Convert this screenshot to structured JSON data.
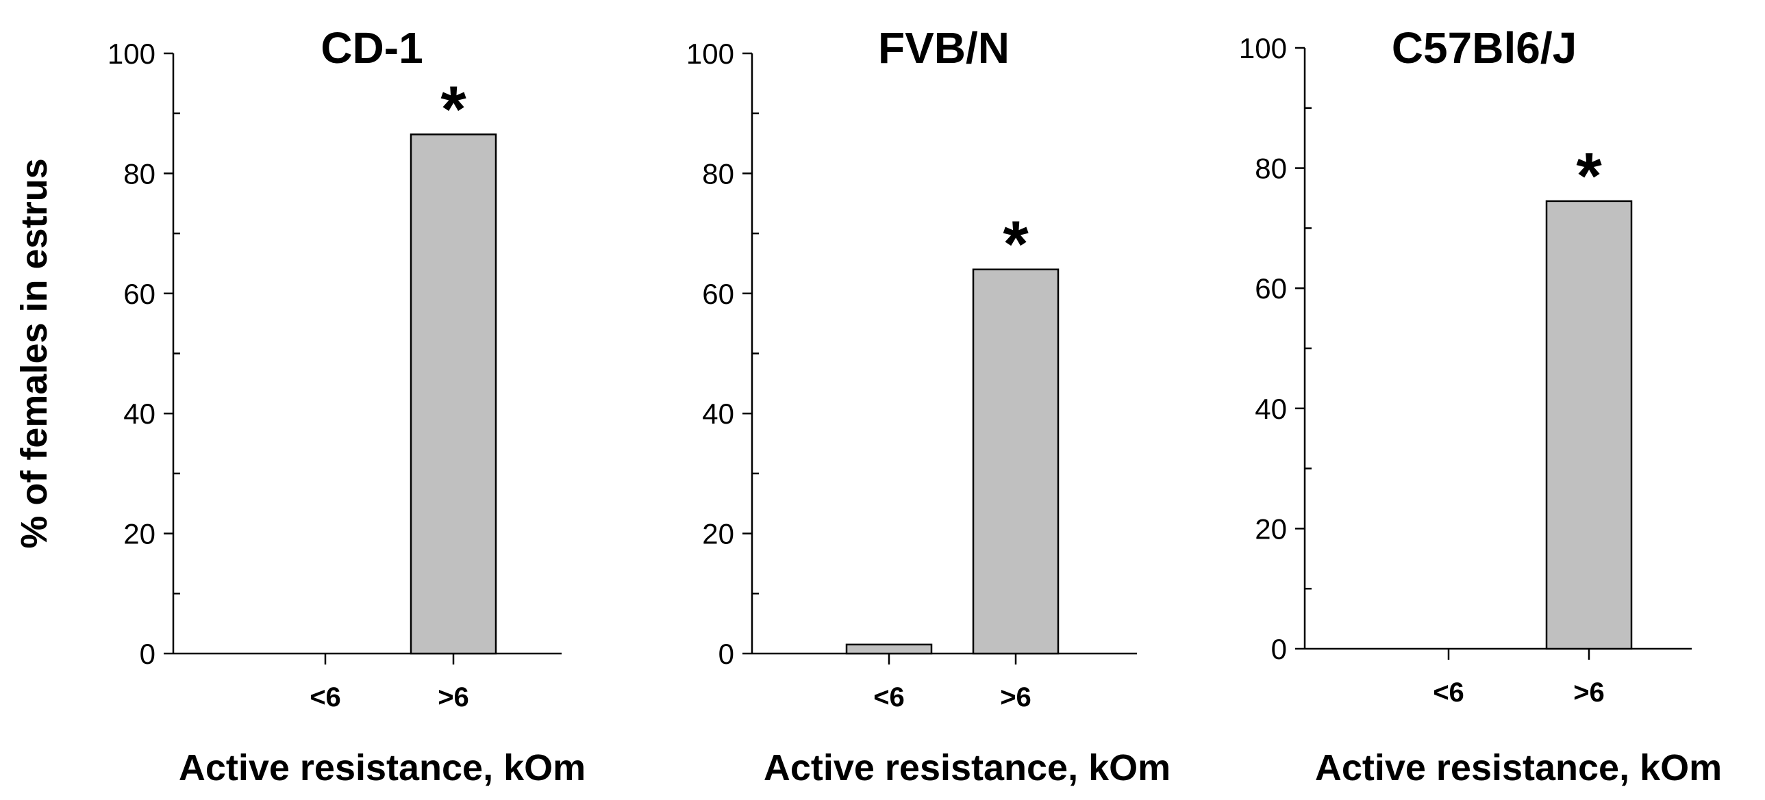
{
  "chart_data": [
    {
      "type": "bar",
      "title": "CD-1",
      "categories": [
        "<6",
        ">6"
      ],
      "values": [
        0,
        86.5
      ],
      "significance": [
        "",
        "*"
      ],
      "xlabel": "Active resistance, kOm",
      "ylabel": "% of females in estrus",
      "ylim": [
        0,
        100
      ],
      "yticks": [
        0,
        20,
        40,
        60,
        80,
        100
      ],
      "ytick_labels": [
        "0",
        "20",
        "40",
        "60",
        "80",
        "100"
      ],
      "grid": false,
      "bar_color": "#c0c0c0"
    },
    {
      "type": "bar",
      "title": "FVB/N",
      "categories": [
        "<6",
        ">6"
      ],
      "values": [
        1.5,
        64
      ],
      "significance": [
        "",
        "*"
      ],
      "xlabel": "Active resistance, kOm",
      "ylabel": "",
      "ylim": [
        0,
        100
      ],
      "yticks": [
        0,
        20,
        40,
        60,
        80,
        100
      ],
      "ytick_labels": [
        "0",
        "20",
        "40",
        "60",
        "80",
        "100"
      ],
      "grid": false,
      "bar_color": "#c0c0c0"
    },
    {
      "type": "bar",
      "title": "C57Bl6/J",
      "categories": [
        "<6",
        ">6"
      ],
      "values": [
        0,
        74.5
      ],
      "significance": [
        "",
        "*"
      ],
      "xlabel": "Active resistance, kOm",
      "ylabel": "",
      "ylim": [
        0,
        100
      ],
      "yticks": [
        0,
        20,
        40,
        60,
        80,
        100
      ],
      "ytick_labels": [
        "0",
        "20",
        "40",
        "60",
        "80",
        "100"
      ],
      "grid": false,
      "bar_color": "#c0c0c0"
    }
  ]
}
